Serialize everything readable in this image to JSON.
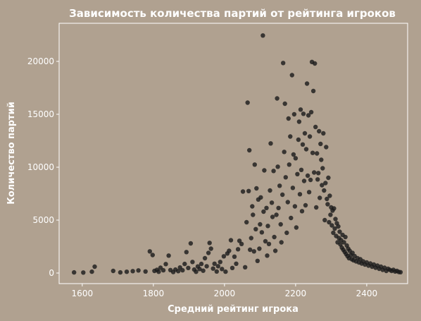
{
  "chart_data": {
    "type": "scatter",
    "title": "Зависимость количества партий от рейтинга игроков",
    "xlabel": "Средний рейтинг игрока",
    "ylabel": "Количество партий",
    "xlim": [
      1535,
      2515
    ],
    "ylim": [
      -1000,
      23600
    ],
    "xticks": [
      1600,
      1800,
      2000,
      2200,
      2400
    ],
    "yticks": [
      0,
      5000,
      10000,
      15000,
      20000
    ],
    "grid": false,
    "colors": {
      "background": "#b0a190",
      "axes_frame": "#ffffff",
      "point": "#1a1a1a",
      "text": "#ffffff"
    },
    "series": [
      {
        "points": [
          [
            1577,
            60
          ],
          [
            1603,
            50
          ],
          [
            1627,
            130
          ],
          [
            1635,
            600
          ],
          [
            1687,
            200
          ],
          [
            1707,
            60
          ],
          [
            1725,
            120
          ],
          [
            1742,
            180
          ],
          [
            1758,
            250
          ],
          [
            1778,
            150
          ],
          [
            1790,
            2050
          ],
          [
            1798,
            1700
          ],
          [
            1803,
            200
          ],
          [
            1810,
            300
          ],
          [
            1815,
            120
          ],
          [
            1820,
            500
          ],
          [
            1828,
            260
          ],
          [
            1835,
            850
          ],
          [
            1843,
            1650
          ],
          [
            1848,
            280
          ],
          [
            1856,
            90
          ],
          [
            1862,
            330
          ],
          [
            1870,
            180
          ],
          [
            1875,
            520
          ],
          [
            1882,
            260
          ],
          [
            1888,
            860
          ],
          [
            1893,
            1980
          ],
          [
            1898,
            480
          ],
          [
            1905,
            2800
          ],
          [
            1910,
            1050
          ],
          [
            1915,
            330
          ],
          [
            1920,
            120
          ],
          [
            1925,
            620
          ],
          [
            1930,
            380
          ],
          [
            1935,
            860
          ],
          [
            1940,
            220
          ],
          [
            1945,
            1400
          ],
          [
            1950,
            640
          ],
          [
            1955,
            1900
          ],
          [
            1958,
            2850
          ],
          [
            1962,
            2300
          ],
          [
            1968,
            420
          ],
          [
            1972,
            880
          ],
          [
            1978,
            150
          ],
          [
            1982,
            650
          ],
          [
            1988,
            1050
          ],
          [
            1993,
            380
          ],
          [
            1998,
            1580
          ],
          [
            2003,
            130
          ],
          [
            2008,
            1850
          ],
          [
            2013,
            2100
          ],
          [
            2018,
            3100
          ],
          [
            2022,
            480
          ],
          [
            2028,
            1550
          ],
          [
            2033,
            880
          ],
          [
            2038,
            2250
          ],
          [
            2042,
            3050
          ],
          [
            2048,
            2750
          ],
          [
            2052,
            7700
          ],
          [
            2058,
            550
          ],
          [
            2062,
            4800
          ],
          [
            2065,
            16100
          ],
          [
            2068,
            7750
          ],
          [
            2070,
            11600
          ],
          [
            2072,
            2200
          ],
          [
            2075,
            3300
          ],
          [
            2078,
            6300
          ],
          [
            2080,
            5500
          ],
          [
            2083,
            2050
          ],
          [
            2085,
            10250
          ],
          [
            2088,
            4150
          ],
          [
            2090,
            8000
          ],
          [
            2093,
            1150
          ],
          [
            2095,
            6950
          ],
          [
            2098,
            2300
          ],
          [
            2100,
            4600
          ],
          [
            2102,
            7150
          ],
          [
            2105,
            3850
          ],
          [
            2108,
            22450
          ],
          [
            2110,
            5800
          ],
          [
            2112,
            9700
          ],
          [
            2115,
            3000
          ],
          [
            2118,
            6150
          ],
          [
            2120,
            1650
          ],
          [
            2122,
            4450
          ],
          [
            2125,
            2750
          ],
          [
            2128,
            7800
          ],
          [
            2130,
            12250
          ],
          [
            2133,
            6650
          ],
          [
            2135,
            5300
          ],
          [
            2138,
            9650
          ],
          [
            2140,
            3400
          ],
          [
            2143,
            2100
          ],
          [
            2146,
            5500
          ],
          [
            2148,
            16500
          ],
          [
            2150,
            10050
          ],
          [
            2152,
            6150
          ],
          [
            2155,
            8250
          ],
          [
            2158,
            4600
          ],
          [
            2160,
            2900
          ],
          [
            2163,
            7400
          ],
          [
            2165,
            19850
          ],
          [
            2168,
            11450
          ],
          [
            2170,
            16000
          ],
          [
            2172,
            9050
          ],
          [
            2175,
            3800
          ],
          [
            2178,
            6700
          ],
          [
            2180,
            14600
          ],
          [
            2182,
            10250
          ],
          [
            2185,
            12900
          ],
          [
            2187,
            5200
          ],
          [
            2190,
            18700
          ],
          [
            2192,
            8050
          ],
          [
            2194,
            11200
          ],
          [
            2196,
            15000
          ],
          [
            2198,
            6300
          ],
          [
            2200,
            10850
          ],
          [
            2202,
            4300
          ],
          [
            2205,
            9350
          ],
          [
            2208,
            12600
          ],
          [
            2210,
            14300
          ],
          [
            2212,
            7450
          ],
          [
            2214,
            15450
          ],
          [
            2216,
            9750
          ],
          [
            2218,
            5850
          ],
          [
            2220,
            12150
          ],
          [
            2222,
            15050
          ],
          [
            2224,
            8700
          ],
          [
            2226,
            13200
          ],
          [
            2228,
            6400
          ],
          [
            2230,
            11700
          ],
          [
            2232,
            17900
          ],
          [
            2234,
            9200
          ],
          [
            2236,
            14900
          ],
          [
            2238,
            7650
          ],
          [
            2240,
            12900
          ],
          [
            2242,
            8800
          ],
          [
            2244,
            15200
          ],
          [
            2246,
            19950
          ],
          [
            2248,
            11350
          ],
          [
            2250,
            17200
          ],
          [
            2252,
            9500
          ],
          [
            2254,
            19800
          ],
          [
            2256,
            13800
          ],
          [
            2258,
            6200
          ],
          [
            2260,
            11300
          ],
          [
            2262,
            8850
          ],
          [
            2264,
            9450
          ],
          [
            2266,
            13400
          ],
          [
            2268,
            7100
          ],
          [
            2270,
            12200
          ],
          [
            2272,
            10700
          ],
          [
            2274,
            8300
          ],
          [
            2276,
            9900
          ],
          [
            2278,
            13200
          ],
          [
            2280,
            7800
          ],
          [
            2282,
            5000
          ],
          [
            2284,
            8500
          ],
          [
            2286,
            11900
          ],
          [
            2288,
            7000
          ],
          [
            2290,
            6500
          ],
          [
            2292,
            9000
          ],
          [
            2294,
            4800
          ],
          [
            2296,
            7300
          ],
          [
            2298,
            5500
          ],
          [
            2300,
            6200
          ],
          [
            2302,
            4500
          ],
          [
            2304,
            5900
          ],
          [
            2306,
            3800
          ],
          [
            2308,
            6100
          ],
          [
            2310,
            4200
          ],
          [
            2312,
            5100
          ],
          [
            2314,
            3500
          ],
          [
            2316,
            4700
          ],
          [
            2318,
            2900
          ],
          [
            2320,
            4400
          ],
          [
            2322,
            3300
          ],
          [
            2324,
            3900
          ],
          [
            2326,
            2700
          ],
          [
            2328,
            3100
          ],
          [
            2330,
            2400
          ],
          [
            2332,
            3600
          ],
          [
            2334,
            2200
          ],
          [
            2336,
            2900
          ],
          [
            2338,
            2000
          ],
          [
            2340,
            3400
          ],
          [
            2342,
            1800
          ],
          [
            2344,
            2600
          ],
          [
            2346,
            1600
          ],
          [
            2348,
            2300
          ],
          [
            2350,
            1400
          ],
          [
            2352,
            2100
          ],
          [
            2355,
            1700
          ],
          [
            2358,
            1300
          ],
          [
            2360,
            1900
          ],
          [
            2363,
            1200
          ],
          [
            2366,
            1600
          ],
          [
            2370,
            1100
          ],
          [
            2374,
            1400
          ],
          [
            2378,
            1000
          ],
          [
            2382,
            1300
          ],
          [
            2386,
            900
          ],
          [
            2390,
            1100
          ],
          [
            2395,
            800
          ],
          [
            2400,
            1000
          ],
          [
            2405,
            700
          ],
          [
            2410,
            900
          ],
          [
            2415,
            600
          ],
          [
            2420,
            800
          ],
          [
            2425,
            500
          ],
          [
            2430,
            700
          ],
          [
            2435,
            400
          ],
          [
            2440,
            600
          ],
          [
            2445,
            300
          ],
          [
            2450,
            500
          ],
          [
            2455,
            200
          ],
          [
            2460,
            400
          ],
          [
            2465,
            300
          ],
          [
            2470,
            200
          ],
          [
            2475,
            300
          ],
          [
            2480,
            150
          ],
          [
            2485,
            200
          ],
          [
            2490,
            100
          ],
          [
            2495,
            80
          ]
        ]
      }
    ]
  }
}
